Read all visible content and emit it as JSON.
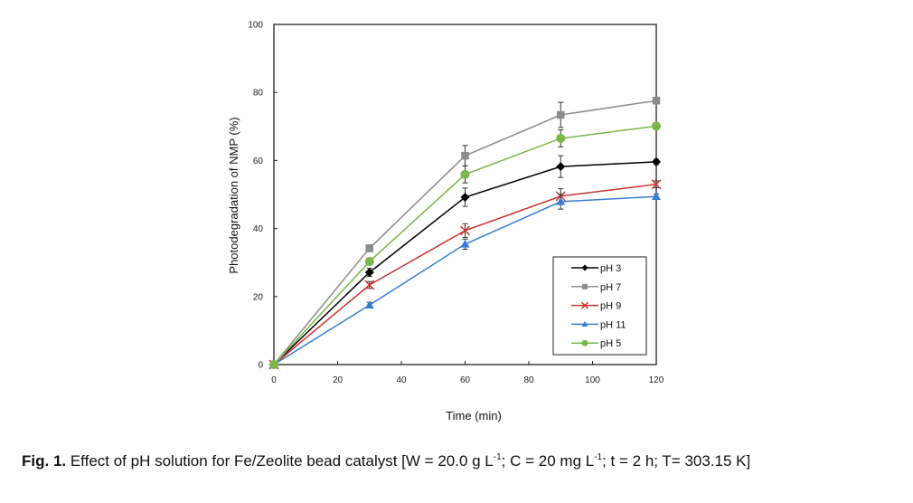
{
  "chart_data": {
    "type": "line",
    "title": "",
    "xlabel": "Time (min)",
    "ylabel": "Photodegradation of NMP (%)",
    "xlim": [
      0,
      120
    ],
    "ylim": [
      0,
      100
    ],
    "xticks": [
      0,
      20,
      40,
      60,
      80,
      100,
      120
    ],
    "yticks": [
      0,
      20,
      40,
      60,
      80,
      100
    ],
    "grid": false,
    "legend_position": "bottom-right",
    "x": [
      0,
      30,
      60,
      90,
      120
    ],
    "series": [
      {
        "name": "pH 3",
        "color": "#000000",
        "marker": "diamond",
        "values": [
          0,
          27.1,
          49.2,
          58.2,
          59.6
        ],
        "errors": [
          0,
          1.2,
          2.7,
          3.2,
          0.8
        ]
      },
      {
        "name": "pH 7",
        "color": "#8c8c8c",
        "marker": "square",
        "values": [
          0,
          34.2,
          61.4,
          73.4,
          77.6
        ],
        "errors": [
          0,
          1.0,
          3.0,
          3.7,
          1.0
        ]
      },
      {
        "name": "pH 9",
        "color": "#cc3333",
        "marker": "x",
        "values": [
          0,
          23.4,
          39.4,
          49.5,
          53.0
        ],
        "errors": [
          0,
          1.0,
          2.0,
          2.2,
          1.0
        ]
      },
      {
        "name": "pH 11",
        "color": "#3a7dd0",
        "marker": "triangle",
        "values": [
          0,
          17.5,
          35.4,
          47.9,
          49.4
        ],
        "errors": [
          0,
          0.8,
          1.5,
          2.2,
          0.8
        ]
      },
      {
        "name": "pH 5",
        "color": "#7ab648",
        "marker": "circle",
        "values": [
          0,
          30.3,
          55.9,
          66.5,
          70.1
        ],
        "errors": [
          0,
          1.0,
          2.5,
          2.5,
          1.0
        ]
      }
    ]
  },
  "caption": {
    "label": "Fig. 1.",
    "text_before_sup1": " Effect of pH solution for Fe/Zeolite  bead catalyst  [W = 20.0 g L",
    "sup1": "-1",
    "text_before_sup2": "; C = 20 mg L",
    "sup2": "-1",
    "text_after": "; t = 2 h; T= 303.15 K]"
  }
}
